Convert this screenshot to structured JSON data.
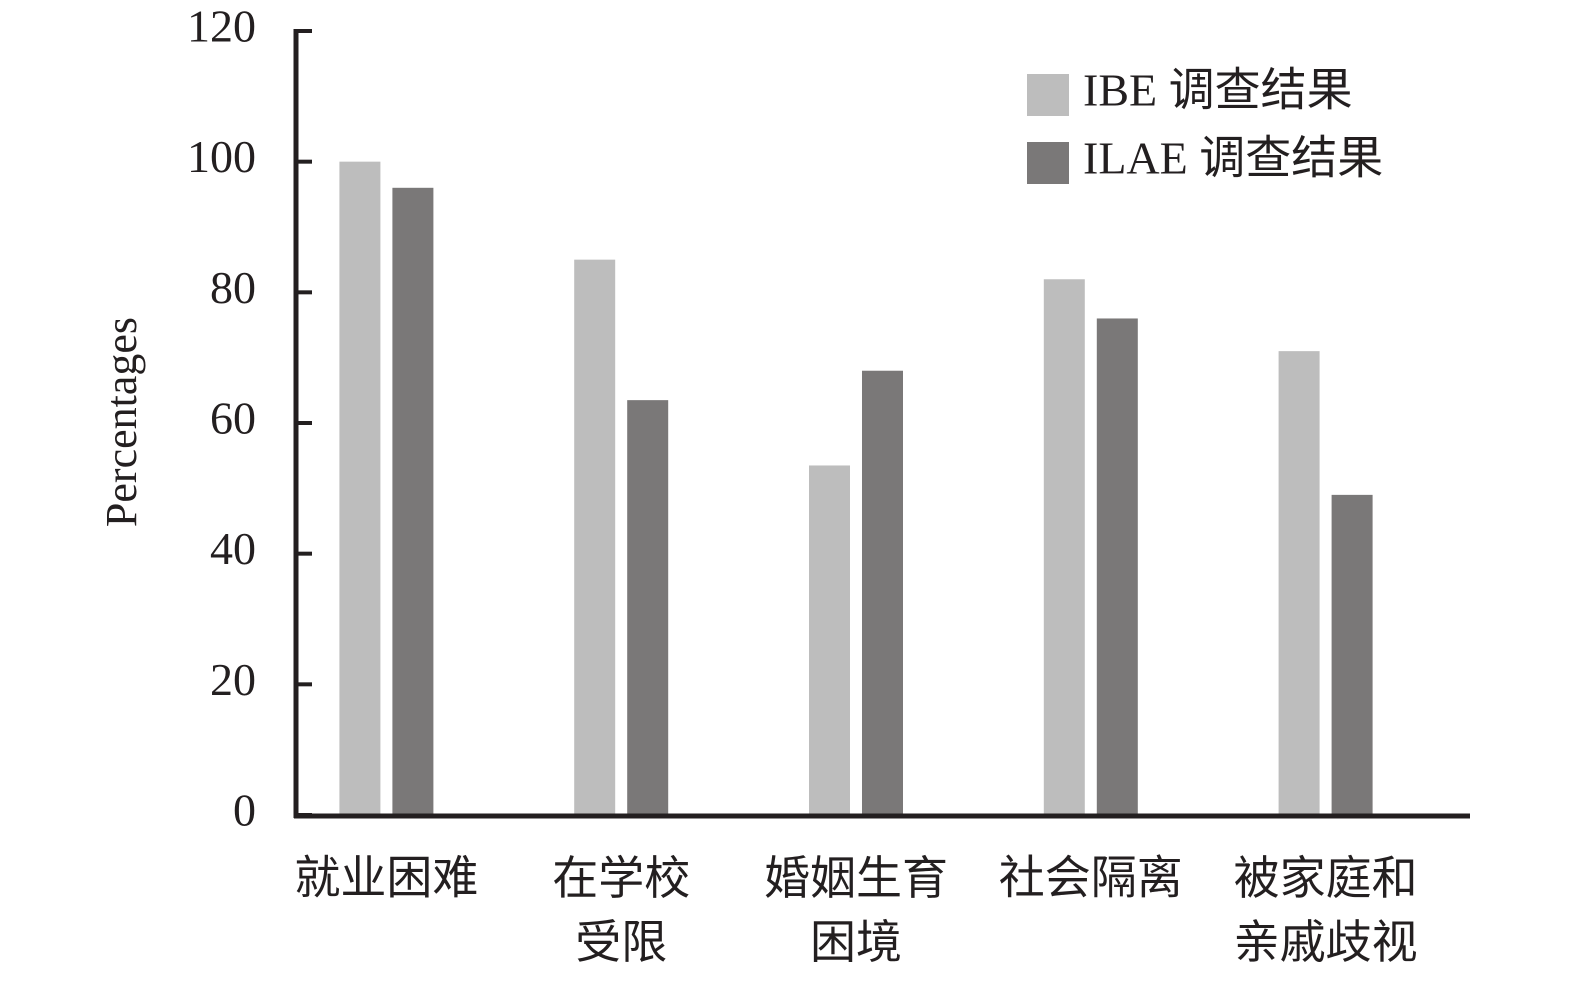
{
  "chart_data": {
    "type": "bar",
    "y_label": "Percentages",
    "categories": [
      "就业困难",
      "在学校\n受限",
      "婚姻生育\n困境",
      "社会隔离",
      "被家庭和\n亲戚歧视"
    ],
    "series": [
      {
        "name": "IBE 调查结果",
        "color": "#bdbdbd",
        "values": [
          100,
          85,
          53.5,
          82,
          71
        ]
      },
      {
        "name": "ILAE 调查结果",
        "color": "#7a7878",
        "values": [
          96,
          63.5,
          68,
          76,
          49
        ]
      }
    ],
    "ylim": [
      0,
      120
    ],
    "yticks": [
      0,
      20,
      40,
      60,
      80,
      100,
      120
    ],
    "grid": false,
    "legend": "upper right"
  }
}
